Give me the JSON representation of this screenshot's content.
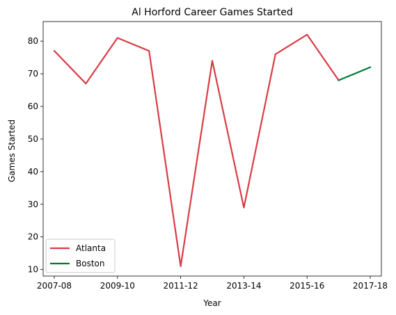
{
  "chart_data": {
    "type": "line",
    "title": "Al Horford Career Games Started",
    "xlabel": "Year",
    "ylabel": "Games Started",
    "x": [
      "2007-08",
      "2008-09",
      "2009-10",
      "2010-11",
      "2011-12",
      "2012-13",
      "2013-14",
      "2014-15",
      "2015-16",
      "2016-17",
      "2017-18"
    ],
    "x_tick_labels": [
      "2007-08",
      "2009-10",
      "2011-12",
      "2013-14",
      "2015-16",
      "2017-18"
    ],
    "ylim": [
      8,
      86
    ],
    "y_ticks": [
      10,
      20,
      30,
      40,
      50,
      60,
      70,
      80
    ],
    "grid": false,
    "legend_position": "lower-left",
    "series": [
      {
        "name": "Atlanta",
        "color": "#d93c45",
        "points": [
          [
            "2007-08",
            77
          ],
          [
            "2008-09",
            67
          ],
          [
            "2009-10",
            81
          ],
          [
            "2010-11",
            77
          ],
          [
            "2011-12",
            11
          ],
          [
            "2012-13",
            74
          ],
          [
            "2013-14",
            29
          ],
          [
            "2014-15",
            76
          ],
          [
            "2015-16",
            82
          ],
          [
            "2016-17",
            68
          ]
        ]
      },
      {
        "name": "Boston",
        "color": "#007a33",
        "points": [
          [
            "2016-17",
            68
          ],
          [
            "2017-18",
            72
          ]
        ]
      }
    ]
  }
}
